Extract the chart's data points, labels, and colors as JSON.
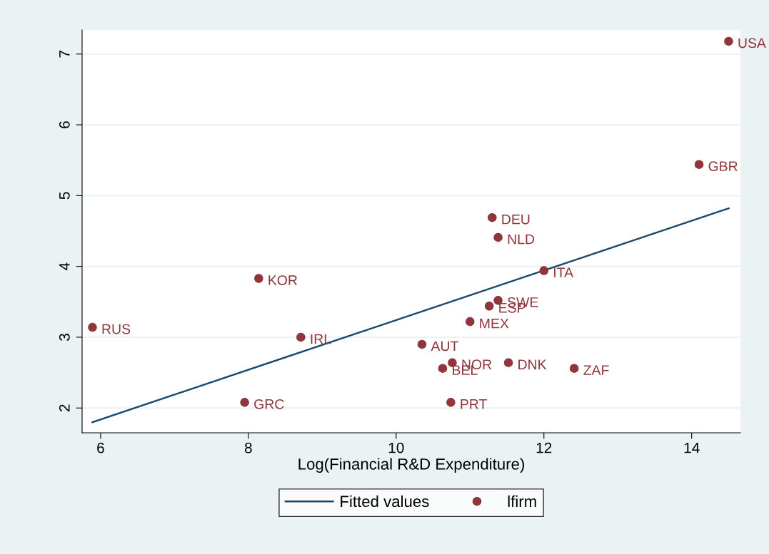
{
  "chart_data": {
    "type": "scatter",
    "xlabel": "Log(Financial R&D Expenditure)",
    "xlim": [
      5.75,
      14.66
    ],
    "ylim": [
      1.65,
      7.34
    ],
    "xticks": [
      6,
      8,
      10,
      12,
      14
    ],
    "yticks": [
      2,
      3,
      4,
      5,
      6,
      7
    ],
    "grid": "y",
    "legend": "bottom",
    "series": [
      {
        "name": "Fitted values",
        "type": "line",
        "color": "#1a476f",
        "x": [
          5.89,
          14.5
        ],
        "values": [
          1.8,
          4.82
        ]
      },
      {
        "name": "lfirm",
        "marker": "circle",
        "color": "#90353b",
        "x": [
          14.5,
          14.1,
          11.3,
          11.38,
          12.0,
          8.14,
          11.38,
          11.26,
          11.0,
          5.89,
          8.71,
          10.35,
          10.76,
          11.52,
          10.63,
          12.41,
          7.95,
          10.74
        ],
        "values": [
          7.18,
          5.44,
          4.69,
          4.41,
          3.94,
          3.83,
          3.52,
          3.44,
          3.22,
          3.14,
          3.0,
          2.9,
          2.64,
          2.64,
          2.56,
          2.56,
          2.08,
          2.08
        ]
      }
    ],
    "annotations": [
      {
        "text": "USA",
        "x": 14.5,
        "y": 7.18
      },
      {
        "text": "GBR",
        "x": 14.1,
        "y": 5.44
      },
      {
        "text": "DEU",
        "x": 11.3,
        "y": 4.69
      },
      {
        "text": "NLD",
        "x": 11.38,
        "y": 4.41
      },
      {
        "text": "ITA",
        "x": 12.0,
        "y": 3.94
      },
      {
        "text": "KOR",
        "x": 8.14,
        "y": 3.83
      },
      {
        "text": "SWE",
        "x": 11.38,
        "y": 3.52
      },
      {
        "text": "ESP",
        "x": 11.26,
        "y": 3.44
      },
      {
        "text": "MEX",
        "x": 11.0,
        "y": 3.22
      },
      {
        "text": "RUS",
        "x": 5.89,
        "y": 3.14
      },
      {
        "text": "IRL",
        "x": 8.71,
        "y": 3.0
      },
      {
        "text": "AUT",
        "x": 10.35,
        "y": 2.9
      },
      {
        "text": "NOR",
        "x": 10.76,
        "y": 2.64
      },
      {
        "text": "DNK",
        "x": 11.52,
        "y": 2.64
      },
      {
        "text": "BEL",
        "x": 10.63,
        "y": 2.56
      },
      {
        "text": "ZAF",
        "x": 12.41,
        "y": 2.56
      },
      {
        "text": "GRC",
        "x": 7.95,
        "y": 2.08
      },
      {
        "text": "PRT",
        "x": 10.74,
        "y": 2.08
      }
    ]
  }
}
